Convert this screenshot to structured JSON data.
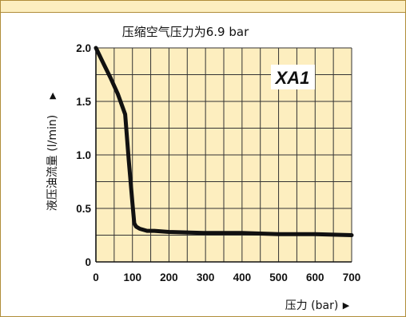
{
  "colors": {
    "plot_background": "#fdeebf",
    "grid": "#333333",
    "curve": "#111111",
    "border": "#b08d3a"
  },
  "chart_data": {
    "type": "line",
    "title": "压缩空气压力为6.9 bar",
    "xlabel": "压力 (bar)",
    "xlabel_arrow": "▶",
    "ylabel": "液压油流量 (l/min)",
    "ylabel_arrow": "▶",
    "xlim": [
      0,
      700
    ],
    "ylim": [
      0,
      2.0
    ],
    "x_ticks": [
      0,
      100,
      200,
      300,
      400,
      500,
      600,
      700
    ],
    "x_tick_labels": [
      "0",
      "100",
      "200",
      "300",
      "400",
      "500",
      "600",
      "700"
    ],
    "y_ticks": [
      0,
      0.5,
      1.0,
      1.5,
      2.0
    ],
    "y_tick_labels": [
      "0",
      "0.5",
      "1.0",
      "1.5",
      "2.0"
    ],
    "grid": true,
    "annotation": "XA1",
    "series": [
      {
        "x": [
          0,
          20,
          40,
          60,
          80,
          90,
          100,
          105,
          110,
          120,
          140,
          160,
          200,
          300,
          400,
          500,
          600,
          700
        ],
        "y": [
          2.0,
          1.86,
          1.72,
          1.57,
          1.38,
          0.95,
          0.55,
          0.36,
          0.33,
          0.31,
          0.29,
          0.29,
          0.28,
          0.27,
          0.27,
          0.26,
          0.26,
          0.25
        ]
      }
    ]
  }
}
